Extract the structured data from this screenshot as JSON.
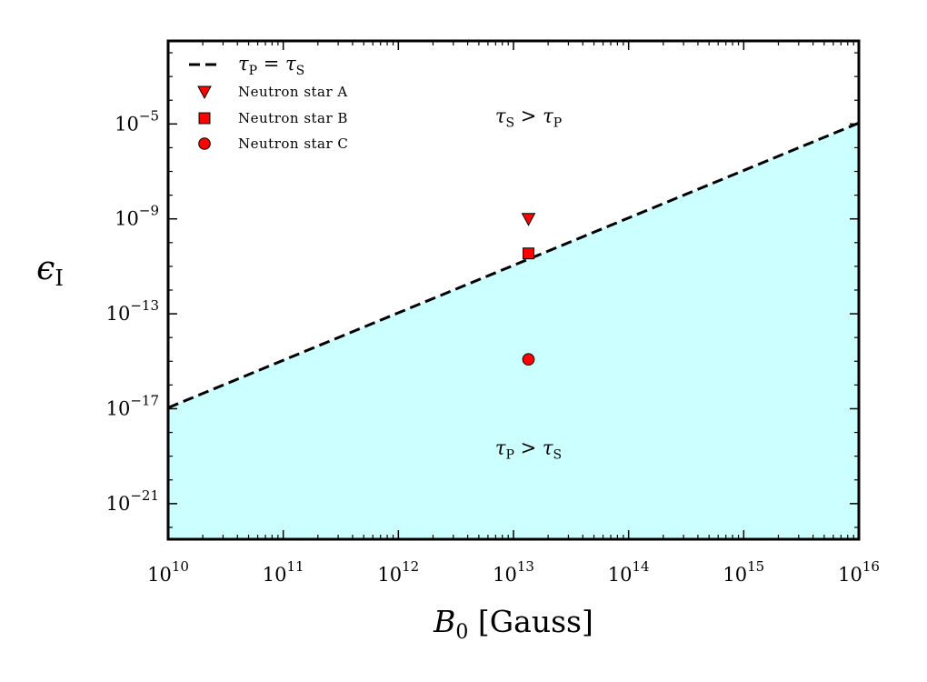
{
  "chart_data": {
    "type": "line",
    "x_scale": "log",
    "y_scale": "log",
    "xlim": [
      10000000000.0,
      1e+16
    ],
    "ylim": [
      3.16e-23,
      0.0316
    ],
    "xlabel": {
      "var": "B",
      "sub": "0",
      "unit": "[Gauss]"
    },
    "ylabel": {
      "var": "ϵ",
      "sub": "I"
    },
    "x_ticks": [
      {
        "base": "10",
        "exp": "10",
        "value": 10000000000.0
      },
      {
        "base": "10",
        "exp": "11",
        "value": 100000000000.0
      },
      {
        "base": "10",
        "exp": "12",
        "value": 1000000000000.0
      },
      {
        "base": "10",
        "exp": "13",
        "value": 10000000000000.0
      },
      {
        "base": "10",
        "exp": "14",
        "value": 100000000000000.0
      },
      {
        "base": "10",
        "exp": "15",
        "value": 1000000000000000.0
      },
      {
        "base": "10",
        "exp": "16",
        "value": 1e+16
      }
    ],
    "y_ticks": [
      {
        "base": "10",
        "exp": "−5",
        "value": 1e-05
      },
      {
        "base": "10",
        "exp": "−9",
        "value": 1e-09
      },
      {
        "base": "10",
        "exp": "−13",
        "value": 1e-13
      },
      {
        "base": "10",
        "exp": "−17",
        "value": 1e-17
      },
      {
        "base": "10",
        "exp": "−21",
        "value": 1e-21
      }
    ],
    "boundary_line": {
      "legend_lhs": "τ",
      "legend_lhs_sub": "P",
      "legend_eq": "=",
      "legend_rhs": "τ",
      "legend_rhs_sub": "S",
      "style": "dashed",
      "points": [
        [
          10000000000.0,
          1.1e-17
        ],
        [
          1e+16,
          1.1e-05
        ]
      ]
    },
    "fill_below_color": "#ccffff",
    "points": [
      {
        "name": "Neutron star A",
        "marker": "triangle-down",
        "x": 13500000000000.0,
        "y": 1e-09
      },
      {
        "name": "Neutron star B",
        "marker": "square",
        "x": 13500000000000.0,
        "y": 3.5e-11
      },
      {
        "name": "Neutron star C",
        "marker": "circle",
        "x": 13500000000000.0,
        "y": 1.2e-15
      }
    ],
    "marker_color": "#ff0000",
    "annotations": [
      {
        "id": "upper",
        "a": "τ",
        "a_sub": "S",
        "op": ">",
        "b": "τ",
        "b_sub": "P",
        "x": 13500000000000.0,
        "y": 1e-05
      },
      {
        "id": "lower",
        "a": "τ",
        "a_sub": "P",
        "op": ">",
        "b": "τ",
        "b_sub": "S",
        "x": 13500000000000.0,
        "y": 1e-19
      }
    ],
    "legend_placement": "top-left",
    "grid": false
  }
}
